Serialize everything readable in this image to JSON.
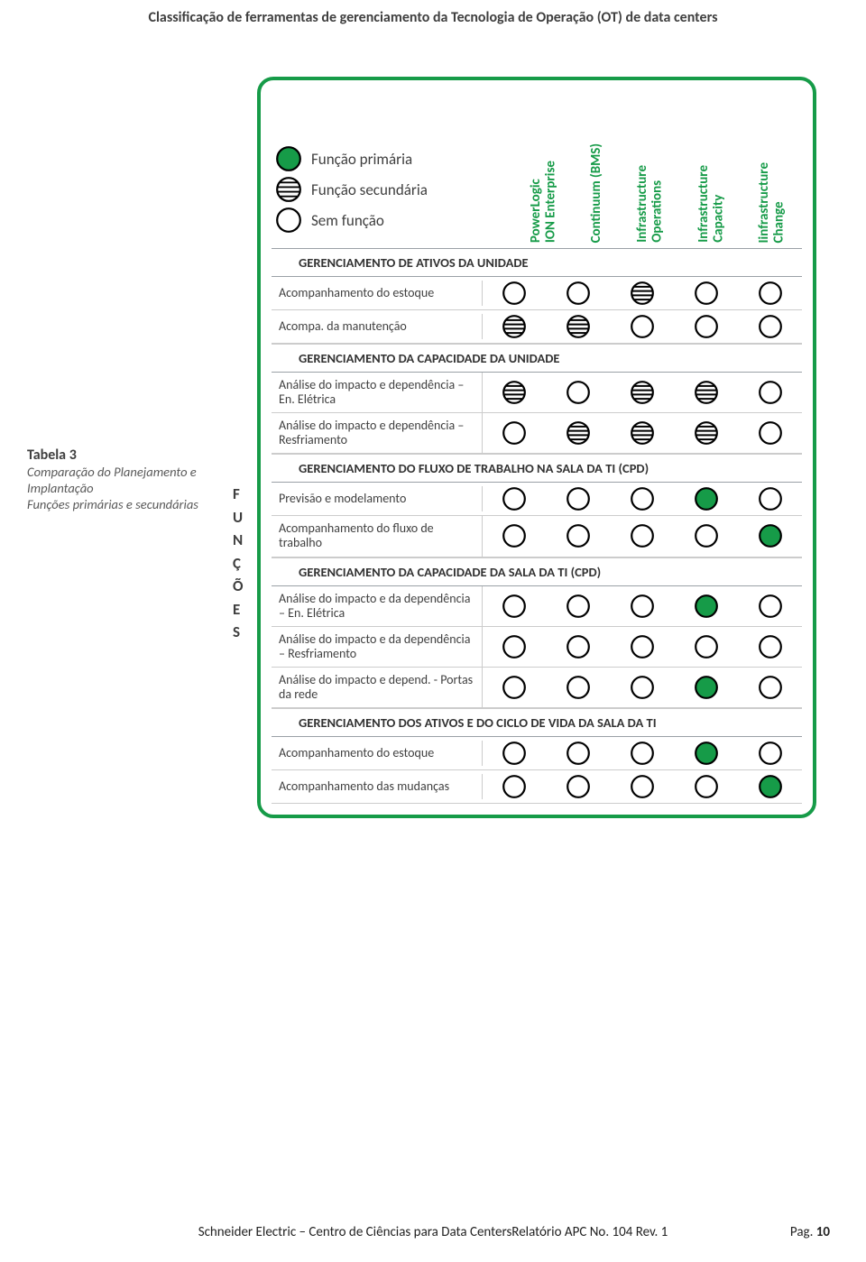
{
  "colors": {
    "green": "#169b48",
    "stroke": "#000000",
    "text": "#3f3f3f"
  },
  "pageTitle": "Classificação de ferramentas de gerenciamento da Tecnologia de Operação (OT) de data centers",
  "caption": {
    "label": "Tabela 3",
    "desc": "Comparação do Planejamento e Implantação\nFunções primárias e secundárias"
  },
  "funcoesLabel": "F\nU\nN\nÇ\nÕ\nE\nS",
  "legend": {
    "primary": "Função primária",
    "secondary": "Função secundária",
    "none": "Sem função"
  },
  "columns": [
    "PowerLogic\nION Enterprise",
    "Continuum (BMS)",
    "Infrastructure\nOperations",
    "Infrastructure\nCapacity",
    "Iinfrastructure\nChange"
  ],
  "sections": [
    {
      "title": "GERENCIAMENTO DE ATIVOS DA UNIDADE",
      "rows": [
        {
          "label": "Acompanhamento do estoque",
          "v": [
            "n",
            "n",
            "s",
            "n",
            "n"
          ]
        },
        {
          "label": "Acompa. da manutenção",
          "v": [
            "s",
            "s",
            "n",
            "n",
            "n"
          ]
        }
      ]
    },
    {
      "title": "GERENCIAMENTO DA CAPACIDADE DA UNIDADE",
      "rows": [
        {
          "label": "Análise do impacto e dependência – En. Elétrica",
          "v": [
            "s",
            "n",
            "s",
            "s",
            "n"
          ]
        },
        {
          "label": "Análise do impacto e dependência – Resfriamento",
          "v": [
            "n",
            "s",
            "s",
            "s",
            "n"
          ]
        }
      ]
    },
    {
      "title": "GERENCIAMENTO DO FLUXO DE TRABALHO NA SALA DA TI (CPD)",
      "rows": [
        {
          "label": "Previsão e modelamento",
          "v": [
            "n",
            "n",
            "n",
            "p",
            "n"
          ]
        },
        {
          "label": "Acompanhamento do fluxo de trabalho",
          "v": [
            "n",
            "n",
            "n",
            "n",
            "p"
          ]
        }
      ]
    },
    {
      "title": "GERENCIAMENTO DA CAPACIDADE DA SALA DA TI (CPD)",
      "rows": [
        {
          "label": "Análise do impacto e da dependência – En. Elétrica",
          "v": [
            "n",
            "n",
            "n",
            "p",
            "n"
          ]
        },
        {
          "label": "Análise do impacto e da dependência – Resfriamento",
          "v": [
            "n",
            "n",
            "n",
            "n",
            "n"
          ]
        },
        {
          "label": "Análise do impacto e depend. - Portas da rede",
          "v": [
            "n",
            "n",
            "n",
            "p",
            "n"
          ]
        }
      ]
    },
    {
      "title": "GERENCIAMENTO DOS ATIVOS E DO CICLO DE VIDA DA SALA DA TI",
      "rows": [
        {
          "label": "Acompanhamento do estoque",
          "v": [
            "n",
            "n",
            "n",
            "p",
            "n"
          ]
        },
        {
          "label": "Acompanhamento das mudanças",
          "v": [
            "n",
            "n",
            "n",
            "n",
            "p"
          ]
        }
      ]
    }
  ],
  "footer": {
    "text": "Schneider Electric – Centro de Ciências para Data CentersRelatório APC No. 104 Rev. 1",
    "pagLabel": "Pag.",
    "pageNum": "10"
  },
  "symbolSize": 28,
  "legendSymbolSize": 30,
  "symbolStroke": 2.2
}
